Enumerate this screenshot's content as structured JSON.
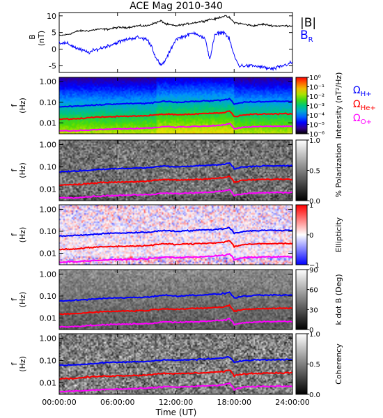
{
  "chart_data": {
    "type": "heatmap",
    "title": "ACE Mag 2010-340",
    "xlabel": "Time (UT)",
    "x_range_hours": [
      0,
      24
    ],
    "x_ticks": [
      "00:00:00",
      "06:00:00",
      "12:00:00",
      "18:00:00",
      "24:00:00"
    ],
    "x_tick_hours": [
      0,
      6,
      12,
      18,
      24
    ],
    "top_panel": {
      "type": "line",
      "ylabel": "B",
      "yunit": "(nT)",
      "ylim": [
        -7,
        11
      ],
      "y_ticks": [
        -5,
        0,
        5,
        10
      ],
      "series": [
        {
          "name": "|B|",
          "color": "#000000",
          "hours": [
            0,
            1,
            1.5,
            2,
            3,
            4,
            5,
            6,
            7,
            8,
            9,
            9.5,
            10,
            10.5,
            11,
            12,
            13,
            14,
            15,
            15.5,
            16,
            16.5,
            17,
            17.5,
            18,
            19,
            20,
            21,
            22,
            23,
            24
          ],
          "values": [
            4,
            4.5,
            5,
            5.5,
            5.5,
            6,
            6,
            6.5,
            6.5,
            7,
            7,
            7.5,
            8,
            8.5,
            7.5,
            7,
            7.5,
            8,
            8.5,
            9,
            9,
            9.5,
            10,
            9.5,
            8,
            7.5,
            7,
            7.5,
            7,
            7,
            7
          ]
        },
        {
          "name": "B_R",
          "color": "#0000ff",
          "hours": [
            0,
            1,
            2,
            3,
            4,
            5,
            6,
            7,
            8,
            9,
            9.5,
            10,
            10.5,
            11,
            12,
            13,
            14,
            15,
            15.5,
            16,
            16.5,
            17,
            17.5,
            18,
            18.5,
            19,
            20,
            21,
            22,
            23,
            24
          ],
          "values": [
            2,
            1.5,
            0,
            -1,
            0,
            1,
            2,
            3,
            3.5,
            3,
            1,
            -3,
            -5,
            -3,
            3,
            4,
            5,
            3,
            -3,
            4,
            5,
            5,
            3,
            -2,
            -5,
            -5,
            -5,
            -5.5,
            -6,
            -5,
            -4
          ]
        }
      ]
    },
    "spectrogram_panels": [
      {
        "id": "intensity",
        "ylabel": "f",
        "yunit": "(Hz)",
        "y_ticks": [
          "1.00",
          "0.10",
          "0.01"
        ],
        "colorbar_type": "rainbow",
        "colorbar_label": "Intensity (nT²/Hz)",
        "colorbar_ticks": [
          "10⁰",
          "10⁻¹",
          "10⁻²",
          "10⁻³",
          "10⁻⁴",
          "10⁻⁵",
          "10⁻⁶"
        ],
        "colorbar_tick_fractions": [
          1.0,
          0.833,
          0.667,
          0.5,
          0.333,
          0.167,
          0.0
        ],
        "gyro_legend": true
      },
      {
        "id": "polarization",
        "ylabel": "f",
        "yunit": "(Hz)",
        "y_ticks": [
          "1.00",
          "0.10",
          "0.01"
        ],
        "colorbar_type": "gray",
        "colorbar_label": "% Polarization",
        "colorbar_ticks": [
          "1.0",
          "0.5",
          "0.0"
        ],
        "colorbar_tick_fractions": [
          1.0,
          0.5,
          0.0
        ]
      },
      {
        "id": "ellipticity",
        "ylabel": "f",
        "yunit": "(Hz)",
        "y_ticks": [
          "1.00",
          "0.10",
          "0.01"
        ],
        "colorbar_type": "bwr",
        "colorbar_label": "Ellipticity",
        "colorbar_ticks": [
          "1",
          "0",
          "−1"
        ],
        "colorbar_tick_fractions": [
          1.0,
          0.5,
          0.0
        ]
      },
      {
        "id": "kdotb",
        "ylabel": "f",
        "yunit": "(Hz)",
        "y_ticks": [
          "1.00",
          "0.10",
          "0.01"
        ],
        "colorbar_type": "gray",
        "colorbar_label": "k dot B (Deg)",
        "colorbar_ticks": [
          "90",
          "60",
          "30",
          "0"
        ],
        "colorbar_tick_fractions": [
          1.0,
          0.667,
          0.333,
          0.0
        ]
      },
      {
        "id": "coherency",
        "ylabel": "f",
        "yunit": "(Hz)",
        "y_ticks": [
          "1.00",
          "0.10",
          "0.01"
        ],
        "colorbar_type": "gray",
        "colorbar_label": "Coherency",
        "colorbar_ticks": [
          "1.0",
          "0.5",
          "0.0"
        ],
        "colorbar_tick_fractions": [
          1.0,
          0.5,
          0.0
        ]
      }
    ],
    "spectrogram_y_range_hz": [
      0.003,
      1.6
    ],
    "gyro_lines": [
      {
        "name": "Ω_H+",
        "color": "#0000ff",
        "hours": [
          0,
          2,
          3,
          5,
          7,
          9,
          10,
          11,
          12,
          14,
          16,
          17,
          17.5,
          18,
          19,
          21,
          24
        ],
        "freq_hz": [
          0.06,
          0.065,
          0.07,
          0.08,
          0.085,
          0.09,
          0.1,
          0.11,
          0.1,
          0.11,
          0.12,
          0.13,
          0.15,
          0.08,
          0.1,
          0.11,
          0.11
        ]
      },
      {
        "name": "Ω_He+",
        "color": "#ff0000",
        "hours": [
          0,
          2,
          3,
          5,
          7,
          9,
          10,
          11,
          12,
          14,
          16,
          17,
          17.5,
          18,
          19,
          21,
          24
        ],
        "freq_hz": [
          0.015,
          0.016,
          0.018,
          0.02,
          0.021,
          0.022,
          0.025,
          0.027,
          0.025,
          0.027,
          0.03,
          0.032,
          0.038,
          0.02,
          0.025,
          0.027,
          0.028
        ]
      },
      {
        "name": "Ω_O+",
        "color": "#ff00ff",
        "hours": [
          0,
          2,
          3,
          5,
          7,
          9,
          10,
          11,
          12,
          14,
          16,
          17,
          17.5,
          18,
          19,
          21,
          24
        ],
        "freq_hz": [
          0.004,
          0.0042,
          0.0045,
          0.005,
          0.0053,
          0.0056,
          0.006,
          0.0068,
          0.0063,
          0.0068,
          0.0075,
          0.008,
          0.0095,
          0.005,
          0.0063,
          0.0068,
          0.007
        ]
      }
    ],
    "legend_top": [
      "|B|",
      "B_R"
    ],
    "legend_gyro": [
      "Ω_H+",
      "Ω_He+",
      "Ω_O+"
    ]
  }
}
